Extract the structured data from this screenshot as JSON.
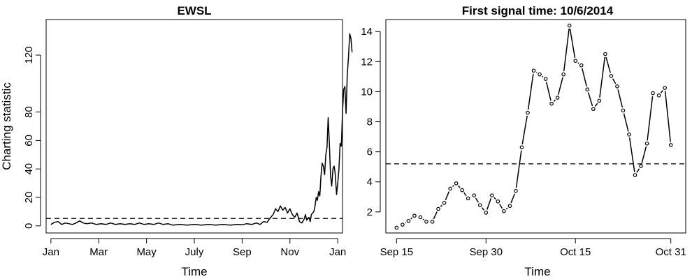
{
  "chart_data": [
    {
      "type": "line",
      "title": "EWSL",
      "xlabel": "Time",
      "ylabel": "Charting statistic",
      "x_ticks": [
        "Jan",
        "Mar",
        "May",
        "July",
        "Sep",
        "Nov",
        "Jan"
      ],
      "x_tick_index": [
        0,
        2,
        4,
        6,
        8,
        10,
        12
      ],
      "y_ticks": [
        0,
        20,
        40,
        60,
        80,
        120
      ],
      "xlim": [
        -0.2,
        12.2
      ],
      "ylim": [
        -5,
        145
      ],
      "threshold": 5.2,
      "grid": false,
      "series": [
        {
          "values": [
            [
              0.0,
              1
            ],
            [
              0.15,
              2.5
            ],
            [
              0.3,
              3
            ],
            [
              0.45,
              1
            ],
            [
              0.6,
              2
            ],
            [
              0.75,
              1.5
            ],
            [
              0.9,
              1
            ],
            [
              1.05,
              2
            ],
            [
              1.2,
              3.5
            ],
            [
              1.35,
              2
            ],
            [
              1.5,
              1.5
            ],
            [
              1.7,
              2
            ],
            [
              1.9,
              1
            ],
            [
              2.1,
              1.5
            ],
            [
              2.3,
              1
            ],
            [
              2.5,
              2
            ],
            [
              2.7,
              1
            ],
            [
              2.9,
              1.5
            ],
            [
              3.1,
              1
            ],
            [
              3.3,
              1.5
            ],
            [
              3.5,
              1
            ],
            [
              3.7,
              2
            ],
            [
              3.9,
              1
            ],
            [
              4.1,
              1.5
            ],
            [
              4.3,
              1
            ],
            [
              4.5,
              2
            ],
            [
              4.7,
              1
            ],
            [
              4.9,
              1.5
            ],
            [
              5.1,
              0.5
            ],
            [
              5.4,
              1
            ],
            [
              5.7,
              0.5
            ],
            [
              6.0,
              1
            ],
            [
              6.3,
              0.5
            ],
            [
              6.6,
              1
            ],
            [
              6.9,
              0.5
            ],
            [
              7.2,
              1
            ],
            [
              7.5,
              0.5
            ],
            [
              7.8,
              1
            ],
            [
              8.0,
              0.8
            ],
            [
              8.2,
              1.5
            ],
            [
              8.4,
              1
            ],
            [
              8.6,
              2
            ],
            [
              8.75,
              1
            ],
            [
              8.9,
              3
            ],
            [
              9.05,
              2.5
            ],
            [
              9.15,
              5
            ],
            [
              9.3,
              8
            ],
            [
              9.4,
              12
            ],
            [
              9.5,
              10
            ],
            [
              9.6,
              14
            ],
            [
              9.7,
              11
            ],
            [
              9.8,
              13
            ],
            [
              9.9,
              9
            ],
            [
              10.0,
              12
            ],
            [
              10.1,
              8
            ],
            [
              10.2,
              6
            ],
            [
              10.3,
              9
            ],
            [
              10.4,
              3
            ],
            [
              10.5,
              2
            ],
            [
              10.6,
              5
            ],
            [
              10.65,
              8
            ],
            [
              10.7,
              4
            ],
            [
              10.8,
              6
            ],
            [
              10.85,
              3
            ],
            [
              10.9,
              8
            ],
            [
              11.0,
              10
            ],
            [
              11.05,
              14
            ],
            [
              11.1,
              20
            ],
            [
              11.15,
              18
            ],
            [
              11.2,
              24
            ],
            [
              11.25,
              21
            ],
            [
              11.3,
              35
            ],
            [
              11.35,
              44
            ],
            [
              11.4,
              42
            ],
            [
              11.45,
              36
            ],
            [
              11.5,
              50
            ],
            [
              11.55,
              55
            ],
            [
              11.6,
              76
            ],
            [
              11.65,
              58
            ],
            [
              11.7,
              35
            ],
            [
              11.75,
              28
            ],
            [
              11.8,
              40
            ],
            [
              11.85,
              42
            ],
            [
              11.9,
              36
            ],
            [
              11.95,
              22
            ],
            [
              12.0,
              30
            ],
            [
              12.05,
              40
            ],
            [
              12.1,
              58
            ],
            [
              12.15,
              56
            ],
            [
              12.2,
              80
            ],
            [
              12.25,
              96
            ],
            [
              12.3,
              98
            ],
            [
              12.35,
              79
            ],
            [
              12.4,
              106
            ],
            [
              12.45,
              118
            ],
            [
              12.5,
              135
            ],
            [
              12.55,
              132
            ],
            [
              12.6,
              122
            ]
          ]
        }
      ]
    },
    {
      "type": "line",
      "title": "First signal time: 10/6/2014",
      "xlabel": "Time",
      "ylabel": "",
      "x_ticks": [
        "Sep 15",
        "Sep 30",
        "Oct 15",
        "Oct 31"
      ],
      "x_tick_index": [
        0,
        15,
        30,
        46
      ],
      "y_ticks": [
        2,
        4,
        6,
        8,
        10,
        12,
        14
      ],
      "xlim": [
        -1.8,
        48.5
      ],
      "ylim": [
        0.6,
        14.8
      ],
      "threshold": 5.2,
      "grid": false,
      "series": [
        {
          "values": [
            [
              0,
              0.95
            ],
            [
              1,
              1.15
            ],
            [
              2,
              1.4
            ],
            [
              3,
              1.75
            ],
            [
              4,
              1.65
            ],
            [
              5,
              1.35
            ],
            [
              6,
              1.35
            ],
            [
              7,
              2.2
            ],
            [
              8,
              2.6
            ],
            [
              9,
              3.55
            ],
            [
              10,
              3.9
            ],
            [
              11,
              3.45
            ],
            [
              12,
              2.9
            ],
            [
              13,
              3.1
            ],
            [
              14,
              2.45
            ],
            [
              15,
              1.95
            ],
            [
              16,
              3.1
            ],
            [
              17,
              2.7
            ],
            [
              18,
              2.05
            ],
            [
              19,
              2.4
            ],
            [
              20,
              3.4
            ],
            [
              21,
              6.3
            ],
            [
              22,
              8.6
            ],
            [
              23,
              11.4
            ],
            [
              24,
              11.15
            ],
            [
              25,
              10.85
            ],
            [
              26,
              9.2
            ],
            [
              27,
              9.6
            ],
            [
              28,
              11.15
            ],
            [
              29,
              14.4
            ],
            [
              30,
              12.05
            ],
            [
              31,
              11.75
            ],
            [
              32,
              10.15
            ],
            [
              33,
              8.85
            ],
            [
              34,
              9.4
            ],
            [
              35,
              12.5
            ],
            [
              36,
              11.05
            ],
            [
              37,
              10.35
            ],
            [
              38,
              8.75
            ],
            [
              39,
              7.15
            ],
            [
              40,
              4.45
            ],
            [
              41,
              5.05
            ],
            [
              42,
              6.55
            ],
            [
              43,
              9.9
            ],
            [
              44,
              9.75
            ],
            [
              45,
              10.25
            ],
            [
              46,
              6.45
            ]
          ]
        }
      ]
    }
  ]
}
